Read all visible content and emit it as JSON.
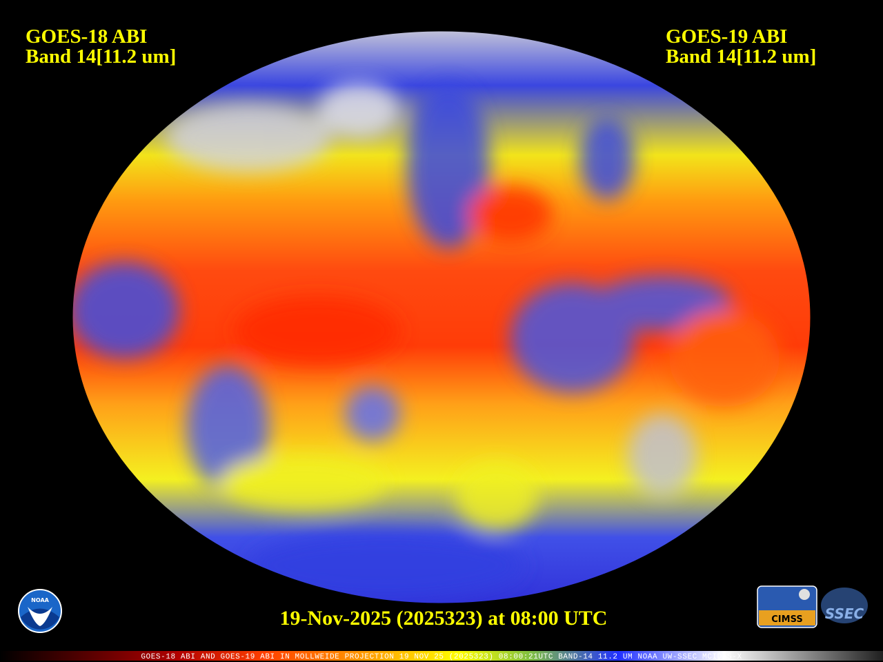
{
  "header": {
    "left": {
      "line1": "GOES-18 ABI",
      "line2": "Band 14[11.2 um]"
    },
    "right": {
      "line1": "GOES-19 ABI",
      "line2": "Band 14[11.2 um]"
    }
  },
  "timestamp": "19-Nov-2025 (2025323) at 08:00 UTC",
  "footer": "GOES-18 ABI AND GOES-19 ABI IN MOLLWEIDE PROJECTION 19 NOV 25 (2025323) 08:00:21UTC BAND-14 11.2 UM NOAA UW-SSEC MCIDAS-X",
  "logos": {
    "noaa": "NOAA",
    "cimss": "CIMSS",
    "ssec": "SSEC"
  }
}
